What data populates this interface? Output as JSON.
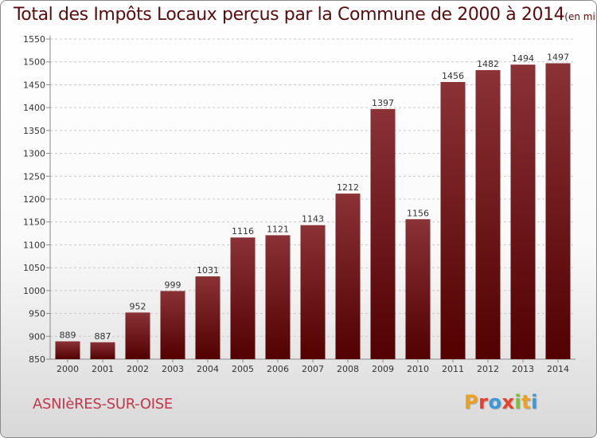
{
  "title": "Total des Impôts Locaux perçus par la Commune de 2000 à 2014",
  "title_unit": "(en milliers d'€)",
  "commune_name": "ASNIèRES-SUR-OISE",
  "logo": {
    "letters": [
      "P",
      "r",
      "o",
      "x",
      "i",
      "t",
      "i"
    ],
    "colors": [
      "#f0a020",
      "#e8402a",
      "#3a9ad9",
      "#e8402a",
      "#7bbf3a",
      "#f0a020",
      "#3a9ad9"
    ]
  },
  "colors": {
    "bar_top": "#8a3236",
    "bar_bottom": "#520000",
    "grid": "#c8c8c8"
  },
  "chart_data": {
    "type": "bar",
    "title": "Total des Impôts Locaux perçus par la Commune de 2000 à 2014",
    "subtitle": "(en milliers d'€)",
    "xlabel": "",
    "ylabel": "",
    "categories": [
      "2000",
      "2001",
      "2002",
      "2003",
      "2004",
      "2005",
      "2006",
      "2007",
      "2008",
      "2009",
      "2010",
      "2011",
      "2012",
      "2013",
      "2014"
    ],
    "values": [
      889,
      887,
      952,
      999,
      1031,
      1116,
      1121,
      1143,
      1212,
      1397,
      1156,
      1456,
      1482,
      1494,
      1497
    ],
    "ylim": [
      850,
      1550
    ],
    "yticks": [
      850,
      900,
      950,
      1000,
      1050,
      1100,
      1150,
      1200,
      1250,
      1300,
      1350,
      1400,
      1450,
      1500,
      1550
    ],
    "grid": true,
    "grid_style": "dashed horizontal",
    "data_labels": true
  }
}
